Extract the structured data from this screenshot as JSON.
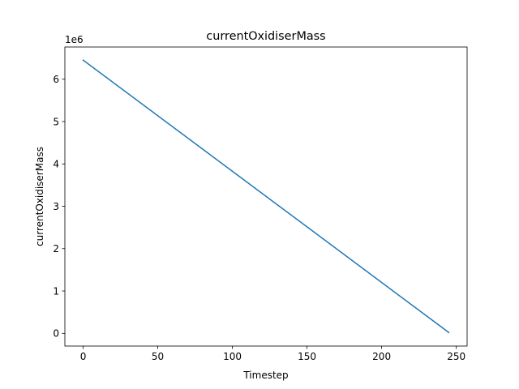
{
  "chart_data": {
    "type": "line",
    "title": "currentOxidiserMass",
    "xlabel": "Timestep",
    "ylabel": "currentOxidiserMass",
    "y_offset_label": "1e6",
    "xlim": [
      -12.25,
      257.25
    ],
    "ylim": [
      -0.3,
      6.76
    ],
    "x_ticks": [
      0,
      50,
      100,
      150,
      200,
      250
    ],
    "x_tick_labels": [
      "0",
      "50",
      "100",
      "150",
      "200",
      "250"
    ],
    "y_ticks": [
      0,
      1,
      2,
      3,
      4,
      5,
      6
    ],
    "y_tick_labels": [
      "0",
      "1",
      "2",
      "3",
      "4",
      "5",
      "6"
    ],
    "grid": false,
    "series": [
      {
        "color": "#1f77b4",
        "x": [
          0,
          245
        ],
        "y": [
          6.45,
          0.02
        ]
      }
    ]
  }
}
